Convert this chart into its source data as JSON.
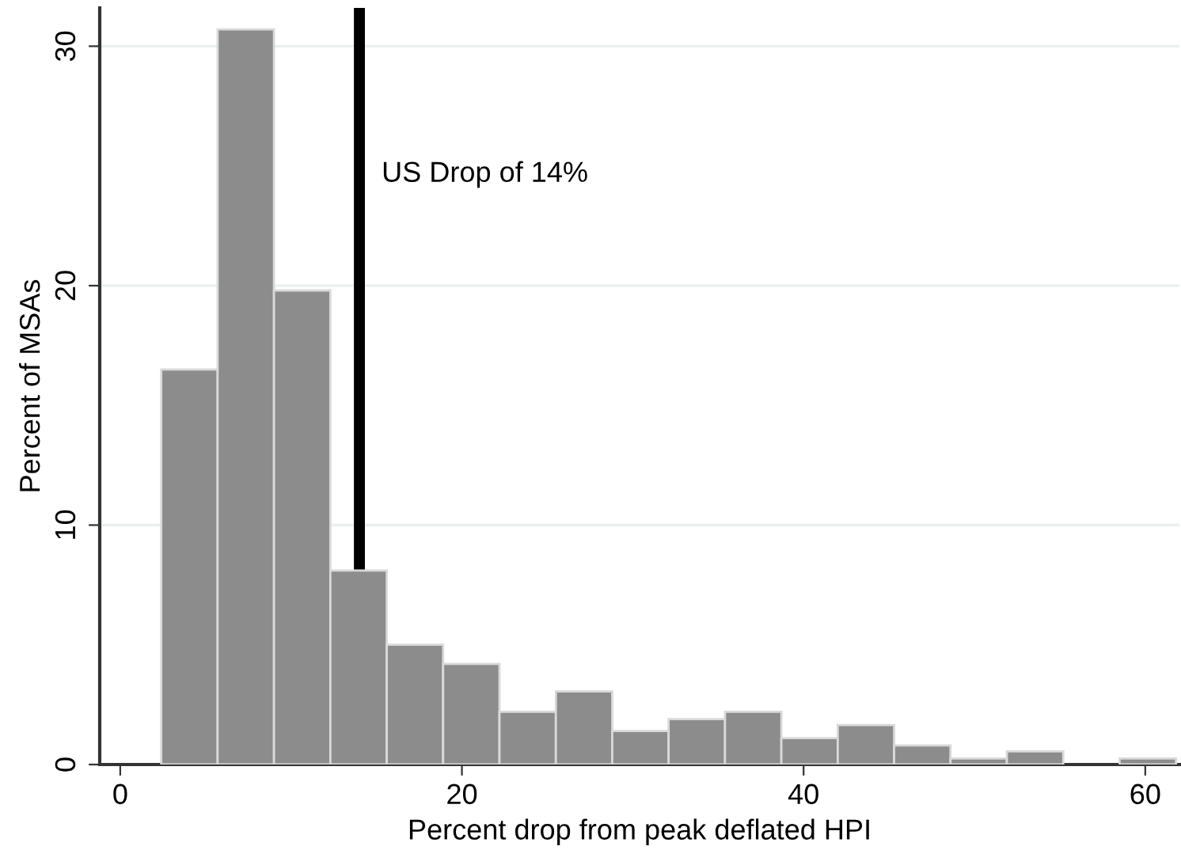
{
  "chart_data": {
    "type": "histogram",
    "xlabel": "Percent drop from peak deflated HPI",
    "ylabel": "Percent of MSAs",
    "bins": [
      2.4,
      5.7,
      9.0,
      12.3,
      15.6,
      18.9,
      22.2,
      25.5,
      28.8,
      32.1,
      35.4,
      38.7,
      42.0,
      45.3,
      48.6,
      51.9,
      55.2,
      58.5,
      61.8
    ],
    "values": [
      16.5,
      30.7,
      19.8,
      8.1,
      5.0,
      4.2,
      2.2,
      3.05,
      1.4,
      1.9,
      2.2,
      1.1,
      1.65,
      0.8,
      0.25,
      0.55,
      0,
      0.25
    ],
    "color": "#8c8c8c",
    "xlim": [
      -1.2,
      62
    ],
    "xticks": [
      0,
      20,
      40,
      60
    ],
    "ylim": [
      0,
      31.6
    ],
    "yticks": [
      0,
      10,
      20,
      30
    ],
    "grid": "y",
    "ref_lines": [
      {
        "axis": "x",
        "value": 14,
        "label": "US Drop of 14%",
        "color": "#000000"
      }
    ]
  }
}
